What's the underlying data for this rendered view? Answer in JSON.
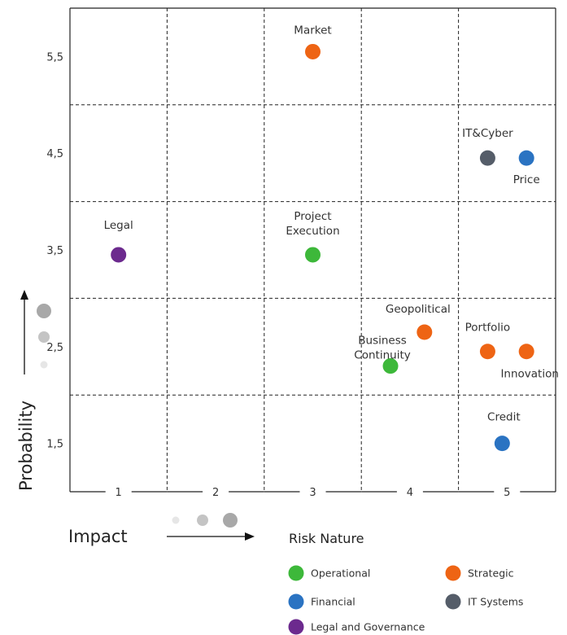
{
  "chart_data": {
    "type": "scatter",
    "xlabel": "Impact",
    "ylabel": "Probability",
    "x_ticks": [
      "1",
      "2",
      "3",
      "4",
      "5"
    ],
    "y_ticks": [
      "1,5",
      "2,5",
      "3,5",
      "4,5",
      "5,5"
    ],
    "xlim": [
      0.5,
      5.5
    ],
    "ylim": [
      1.0,
      6.0
    ],
    "grid": true,
    "legend_title": "Risk Nature",
    "legend_position": "bottom",
    "categories": [
      {
        "key": "operational",
        "name": "Operational",
        "color": "#3db83a"
      },
      {
        "key": "strategic",
        "name": "Strategic",
        "color": "#ee6414"
      },
      {
        "key": "financial",
        "name": "Financial",
        "color": "#2a73c2"
      },
      {
        "key": "it",
        "name": "IT Systems",
        "color": "#555d69"
      },
      {
        "key": "legal",
        "name": "Legal and Governance",
        "color": "#6c2a8e"
      }
    ],
    "points": [
      {
        "label": [
          "Market"
        ],
        "x": 3.0,
        "y": 5.55,
        "category": "strategic"
      },
      {
        "label": [
          "IT&Cyber"
        ],
        "x": 4.8,
        "y": 4.45,
        "category": "it"
      },
      {
        "label": [
          "Price"
        ],
        "x": 5.2,
        "y": 4.45,
        "category": "financial"
      },
      {
        "label": [
          "Legal"
        ],
        "x": 1.0,
        "y": 3.45,
        "category": "legal"
      },
      {
        "label": [
          "Project",
          "Execution"
        ],
        "x": 3.0,
        "y": 3.45,
        "category": "operational"
      },
      {
        "label": [
          "Geopolitical"
        ],
        "x": 4.15,
        "y": 2.65,
        "category": "strategic"
      },
      {
        "label": [
          "Business",
          "Continuity"
        ],
        "x": 3.8,
        "y": 2.3,
        "category": "operational"
      },
      {
        "label": [
          "Portfolio"
        ],
        "x": 4.8,
        "y": 2.45,
        "category": "strategic"
      },
      {
        "label": [
          "Innovation"
        ],
        "x": 5.2,
        "y": 2.45,
        "category": "strategic"
      },
      {
        "label": [
          "Credit"
        ],
        "x": 4.95,
        "y": 1.5,
        "category": "financial"
      }
    ]
  }
}
